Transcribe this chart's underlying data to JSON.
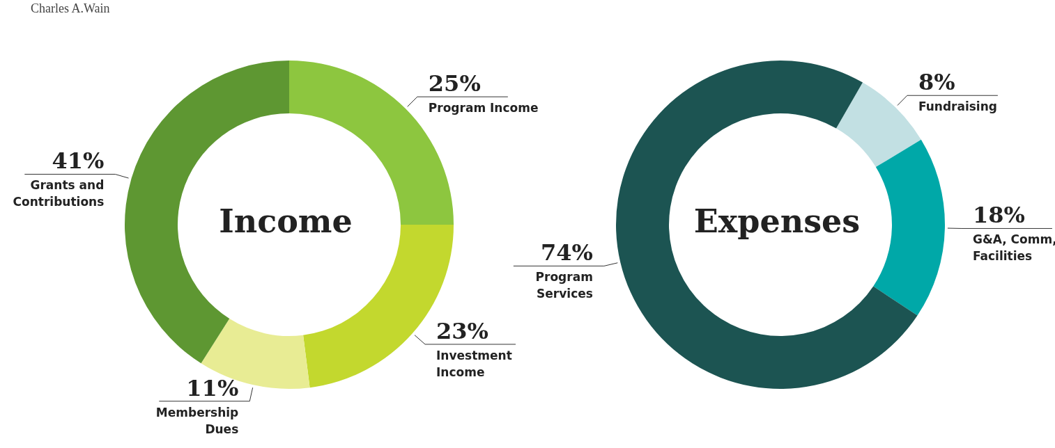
{
  "chart_data": [
    {
      "type": "donut",
      "title": "Income",
      "annotations": [
        "Charles A.Wain"
      ],
      "categories": [
        "Program Income",
        "Investment Income",
        "Membership Dues",
        "Grants and Contributions"
      ],
      "values": [
        25,
        23,
        11,
        41
      ],
      "value_labels": [
        "25%",
        "23%",
        "11%",
        "41%"
      ],
      "colors": [
        "#8dc63f",
        "#c3d82e",
        "#e8ec94",
        "#5e9732"
      ],
      "legend": false
    },
    {
      "type": "donut",
      "title": "Expenses",
      "categories": [
        "Fundraising",
        "G&A, Comm, Facilities",
        "Program Services"
      ],
      "values": [
        8,
        18,
        74
      ],
      "value_labels": [
        "8%",
        "18%",
        "74%"
      ],
      "colors": [
        "#c2e0e3",
        "#00a8a8",
        "#1c5452"
      ],
      "legend": false
    }
  ]
}
